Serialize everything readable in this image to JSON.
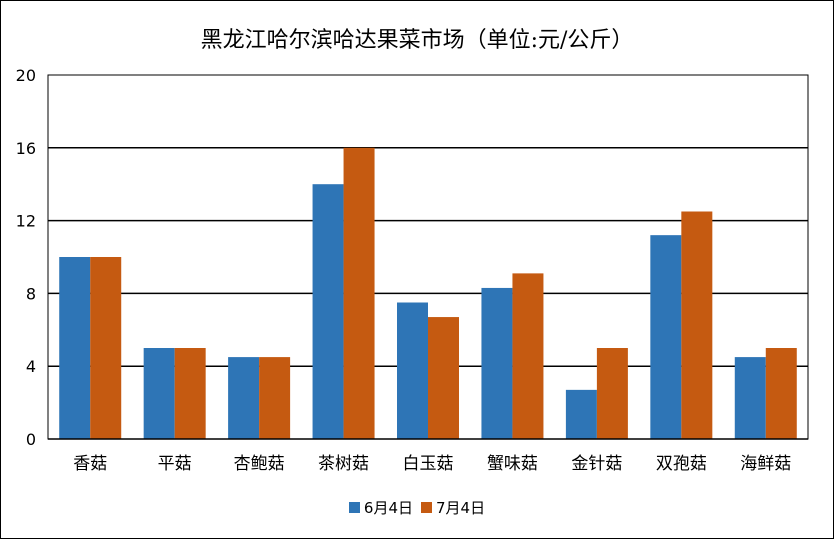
{
  "chart_data": {
    "type": "bar",
    "title": "黑龙江哈尔滨哈达果菜市场（单位:元/公斤）",
    "categories": [
      "香菇",
      "平菇",
      "杏鲍菇",
      "茶树菇",
      "白玉菇",
      "蟹味菇",
      "金针菇",
      "双孢菇",
      "海鲜菇"
    ],
    "series": [
      {
        "name": "6月4日",
        "color": "#2e75b6",
        "values": [
          10,
          5,
          4.5,
          14,
          7.5,
          8.3,
          2.7,
          11.2,
          4.5
        ]
      },
      {
        "name": "7月4日",
        "color": "#c55a11",
        "values": [
          10,
          5,
          4.5,
          16,
          6.7,
          9.1,
          5,
          12.5,
          5
        ]
      }
    ],
    "ylim": [
      0,
      20
    ],
    "yticks": [
      0,
      4,
      8,
      12,
      16,
      20
    ],
    "grid": true,
    "legend": "bottom"
  }
}
